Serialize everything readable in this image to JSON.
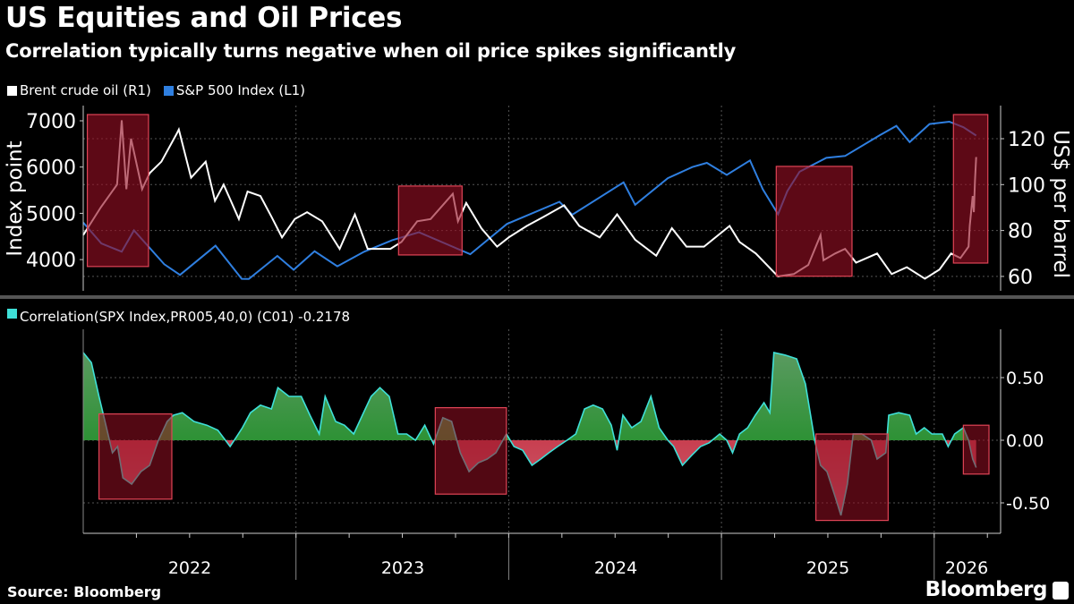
{
  "header": {
    "title": "US Equities and Oil Prices",
    "subtitle": "Correlation typically turns negative when oil price spikes significantly"
  },
  "footer": {
    "source": "Source: Bloomberg",
    "brand": "Bloomberg"
  },
  "colors": {
    "brent": "#ffffff",
    "spx": "#2f7fe0",
    "correlation": "#3fe0d8",
    "positive_fill": "#0a8a12",
    "negative_fill": "#c8182a",
    "highlight_box": "#e04456"
  },
  "chart_data": [
    {
      "type": "line",
      "legend": [
        {
          "label": "Brent crude oil (R1)",
          "color": "#ffffff"
        },
        {
          "label": "S&P 500 Index (L1)",
          "color": "#2f7fe0"
        }
      ],
      "ylabel_left": "Index point",
      "ylabel_right": "US$ per barrel",
      "yticks_left": [
        "7000",
        "6000",
        "5000",
        "4000"
      ],
      "yticks_right": [
        "120",
        "100",
        "80",
        "60"
      ],
      "ylim_left": [
        3400,
        7400
      ],
      "ylim_right": [
        52,
        130
      ],
      "grid": true,
      "series": [
        {
          "name": "Brent crude oil (R1)",
          "axis": "right",
          "x": [
            "2022-01-01",
            "2022-01-31",
            "2022-02-28",
            "2022-03-08",
            "2022-03-16",
            "2022-03-24",
            "2022-04-12",
            "2022-04-25",
            "2022-05-15",
            "2022-06-10",
            "2022-06-14",
            "2022-07-05",
            "2022-07-30",
            "2022-08-15",
            "2022-08-30",
            "2022-09-25",
            "2022-10-10",
            "2022-11-01",
            "2022-11-20",
            "2022-12-08",
            "2022-12-30",
            "2023-01-20",
            "2023-02-15",
            "2023-03-17",
            "2023-04-12",
            "2023-05-04",
            "2023-06-12",
            "2023-07-01",
            "2023-07-28",
            "2023-08-20",
            "2023-09-27",
            "2023-10-06",
            "2023-10-20",
            "2023-11-15",
            "2023-12-12",
            "2024-01-01",
            "2024-02-01",
            "2024-03-01",
            "2024-04-05",
            "2024-05-01",
            "2024-06-05",
            "2024-07-05",
            "2024-08-05",
            "2024-09-10",
            "2024-10-07",
            "2024-11-01",
            "2024-12-01",
            "2025-01-15",
            "2025-02-01",
            "2025-03-01",
            "2025-04-08",
            "2025-05-05",
            "2025-05-30",
            "2025-06-20",
            "2025-06-25",
            "2025-07-15",
            "2025-08-01",
            "2025-08-20",
            "2025-09-25",
            "2025-10-20",
            "2025-11-15",
            "2025-12-16",
            "2026-01-10",
            "2026-01-30",
            "2026-02-15",
            "2026-03-01",
            "2026-03-03",
            "2026-03-08",
            "2026-03-10",
            "2026-03-12",
            "2026-03-14"
          ],
          "y": [
            78,
            90,
            100,
            128,
            98,
            120,
            98,
            105,
            110,
            122,
            124,
            103,
            110,
            93,
            100,
            85,
            97,
            95,
            86,
            77,
            85,
            88,
            84,
            72,
            87,
            72,
            72,
            75,
            84,
            85,
            96,
            84,
            92,
            81,
            73,
            77,
            82,
            86,
            91,
            82,
            77,
            87,
            76,
            69,
            81,
            73,
            73,
            82,
            75,
            70,
            60,
            61,
            65,
            78,
            67,
            70,
            72,
            66,
            70,
            61,
            64,
            59,
            63,
            70,
            68,
            73,
            82,
            95,
            88,
            102,
            112
          ]
        },
        {
          "name": "S&P 500 Index (L1)",
          "axis": "left",
          "x": [
            "2022-01-01",
            "2022-02-01",
            "2022-03-08",
            "2022-03-29",
            "2022-05-20",
            "2022-06-16",
            "2022-08-16",
            "2022-09-30",
            "2022-10-12",
            "2022-11-30",
            "2022-12-28",
            "2023-02-02",
            "2023-03-13",
            "2023-04-28",
            "2023-06-15",
            "2023-07-31",
            "2023-10-27",
            "2023-12-29",
            "2024-03-28",
            "2024-04-19",
            "2024-07-16",
            "2024-08-05",
            "2024-09-30",
            "2024-11-11",
            "2024-12-06",
            "2025-01-10",
            "2025-02-19",
            "2025-03-13",
            "2025-04-08",
            "2025-04-24",
            "2025-05-15",
            "2025-06-30",
            "2025-08-01",
            "2025-09-30",
            "2025-10-28",
            "2025-11-20",
            "2025-12-24",
            "2026-01-27",
            "2026-02-20",
            "2026-03-14"
          ],
          "y": [
            4800,
            4350,
            4170,
            4630,
            3900,
            3670,
            4300,
            3585,
            3580,
            4080,
            3780,
            4180,
            3855,
            4170,
            4420,
            4590,
            4117,
            4770,
            5250,
            4970,
            5670,
            5186,
            5760,
            6000,
            6090,
            5830,
            6144,
            5520,
            4980,
            5480,
            5900,
            6200,
            6240,
            6690,
            6890,
            6540,
            6930,
            6980,
            6860,
            6680
          ]
        }
      ],
      "highlights": [
        {
          "x": [
            "2022-01-08",
            "2022-04-23"
          ],
          "y_left": [
            3850,
            7135
          ]
        },
        {
          "x": [
            "2023-06-26",
            "2023-10-13"
          ],
          "y_left": [
            4100,
            5590
          ]
        },
        {
          "x": [
            "2025-04-05",
            "2025-08-13"
          ],
          "y_left": [
            3640,
            6015
          ]
        },
        {
          "x": [
            "2026-02-03",
            "2026-04-03"
          ],
          "y_left": [
            3925,
            7135
          ]
        }
      ]
    },
    {
      "type": "area",
      "legend": [
        {
          "label": "Correlation(SPX Index,PR005,40,0) (C01) -0.2178",
          "color": "#3fe0d8"
        }
      ],
      "series_name": "Correlation(SPX Index,PR005,40,0) (C01)",
      "last_value": -0.2178,
      "yticks": [
        "0.50",
        "0.00",
        "-0.50"
      ],
      "ylim": [
        -0.75,
        0.85
      ],
      "xticks": [
        "2022",
        "2023",
        "2024",
        "2025",
        "2026"
      ],
      "grid": true,
      "x": [
        "2022-01-01",
        "2022-01-15",
        "2022-01-28",
        "2022-02-10",
        "2022-02-20",
        "2022-03-01",
        "2022-03-10",
        "2022-03-25",
        "2022-04-10",
        "2022-04-25",
        "2022-05-10",
        "2022-05-25",
        "2022-06-05",
        "2022-06-20",
        "2022-07-10",
        "2022-08-01",
        "2022-08-20",
        "2022-09-10",
        "2022-09-20",
        "2022-10-01",
        "2022-10-15",
        "2022-11-01",
        "2022-11-20",
        "2022-12-01",
        "2022-12-20",
        "2023-01-10",
        "2023-01-25",
        "2023-02-10",
        "2023-02-20",
        "2023-03-10",
        "2023-03-25",
        "2023-04-10",
        "2023-04-25",
        "2023-05-10",
        "2023-05-25",
        "2023-06-10",
        "2023-06-25",
        "2023-07-10",
        "2023-07-25",
        "2023-08-10",
        "2023-08-25",
        "2023-09-10",
        "2023-09-25",
        "2023-10-10",
        "2023-10-25",
        "2023-11-10",
        "2023-11-25",
        "2023-12-10",
        "2023-12-28",
        "2024-01-10",
        "2024-01-25",
        "2024-02-10",
        "2024-02-25",
        "2024-03-10",
        "2024-03-25",
        "2024-04-10",
        "2024-04-25",
        "2024-05-10",
        "2024-05-25",
        "2024-06-10",
        "2024-06-25",
        "2024-07-05",
        "2024-07-15",
        "2024-07-30",
        "2024-08-15",
        "2024-09-01",
        "2024-09-15",
        "2024-09-30",
        "2024-10-10",
        "2024-10-25",
        "2024-11-10",
        "2024-11-25",
        "2024-12-10",
        "2024-12-28",
        "2025-01-10",
        "2025-01-20",
        "2025-02-01",
        "2025-02-15",
        "2025-02-28",
        "2025-03-15",
        "2025-03-25",
        "2025-04-01",
        "2025-04-20",
        "2025-05-10",
        "2025-05-25",
        "2025-06-10",
        "2025-06-20",
        "2025-07-01",
        "2025-07-15",
        "2025-07-25",
        "2025-08-05",
        "2025-08-15",
        "2025-08-30",
        "2025-09-15",
        "2025-09-25",
        "2025-10-10",
        "2025-10-15",
        "2025-11-01",
        "2025-11-20",
        "2025-12-01",
        "2025-12-15",
        "2025-12-28",
        "2026-01-15",
        "2026-01-25",
        "2026-02-05",
        "2026-02-20",
        "2026-03-01",
        "2026-03-08",
        "2026-03-14"
      ],
      "y": [
        0.7,
        0.62,
        0.35,
        0.1,
        -0.1,
        -0.05,
        -0.3,
        -0.35,
        -0.25,
        -0.2,
        0.0,
        0.15,
        0.2,
        0.22,
        0.15,
        0.12,
        0.08,
        -0.05,
        0.02,
        0.1,
        0.22,
        0.28,
        0.25,
        0.42,
        0.35,
        0.35,
        0.2,
        0.05,
        0.35,
        0.15,
        0.12,
        0.05,
        0.2,
        0.35,
        0.42,
        0.35,
        0.05,
        0.05,
        0.0,
        0.12,
        -0.03,
        0.18,
        0.15,
        -0.1,
        -0.25,
        -0.18,
        -0.15,
        -0.1,
        0.05,
        -0.05,
        -0.08,
        -0.2,
        -0.15,
        -0.1,
        -0.05,
        0.0,
        0.05,
        0.25,
        0.28,
        0.25,
        0.12,
        -0.08,
        0.2,
        0.1,
        0.15,
        0.35,
        0.1,
        0.0,
        -0.05,
        -0.2,
        -0.12,
        -0.05,
        -0.02,
        0.05,
        0.0,
        -0.1,
        0.05,
        0.1,
        0.2,
        0.3,
        0.22,
        0.7,
        0.68,
        0.65,
        0.45,
        0.0,
        -0.2,
        -0.25,
        -0.45,
        -0.6,
        -0.35,
        0.05,
        0.05,
        0.0,
        -0.15,
        -0.1,
        0.2,
        0.22,
        0.2,
        0.05,
        0.1,
        0.05,
        0.05,
        -0.05,
        0.05,
        0.1,
        0.0,
        -0.15,
        -0.2178
      ],
      "highlights": [
        {
          "x": [
            "2022-01-28",
            "2022-06-02"
          ],
          "y": [
            -0.47,
            0.21
          ]
        },
        {
          "x": [
            "2023-08-28",
            "2023-12-28"
          ],
          "y": [
            -0.43,
            0.26
          ]
        },
        {
          "x": [
            "2025-06-12",
            "2025-10-14"
          ],
          "y": [
            -0.64,
            0.05
          ]
        },
        {
          "x": [
            "2026-02-20",
            "2026-04-05"
          ],
          "y": [
            -0.27,
            0.12
          ]
        }
      ]
    }
  ]
}
